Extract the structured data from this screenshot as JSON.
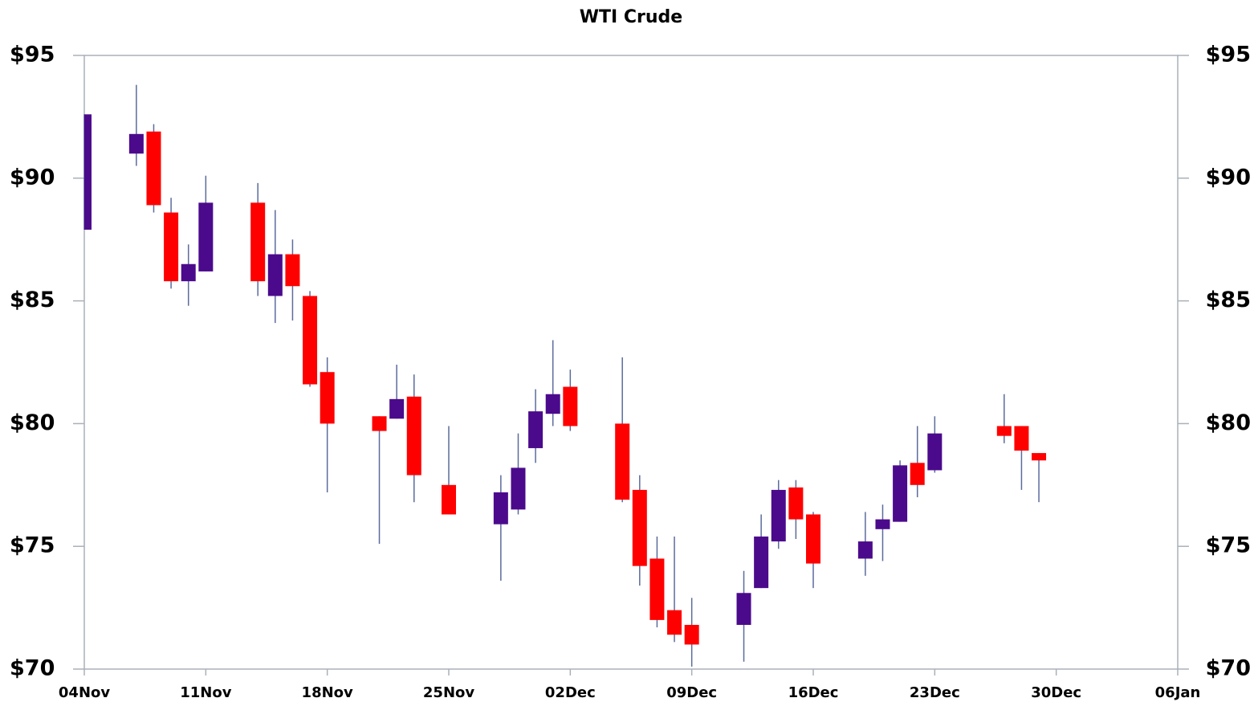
{
  "chart_data": {
    "type": "candlestick",
    "title": "WTI Crude",
    "x": [
      "04Nov",
      "07Nov",
      "08Nov",
      "09Nov",
      "10Nov",
      "11Nov",
      "14Nov",
      "15Nov",
      "16Nov",
      "17Nov",
      "18Nov",
      "21Nov",
      "22Nov",
      "23Nov",
      "25Nov",
      "28Nov",
      "29Nov",
      "30Nov",
      "01Dec",
      "02Dec",
      "05Dec",
      "06Dec",
      "07Dec",
      "08Dec",
      "09Dec",
      "12Dec",
      "13Dec",
      "14Dec",
      "15Dec",
      "16Dec",
      "19Dec",
      "20Dec",
      "21Dec",
      "22Dec",
      "23Dec",
      "27Dec",
      "28Dec",
      "29Dec"
    ],
    "open": [
      87.9,
      91.0,
      91.9,
      88.6,
      85.8,
      86.2,
      89.0,
      85.2,
      86.9,
      85.2,
      82.1,
      80.3,
      80.2,
      81.1,
      77.5,
      75.9,
      76.5,
      79.0,
      80.4,
      81.5,
      80.0,
      77.3,
      74.5,
      72.4,
      71.8,
      71.8,
      73.3,
      75.2,
      77.4,
      76.3,
      74.5,
      75.7,
      76.0,
      78.4,
      78.1,
      79.9,
      79.9,
      78.8
    ],
    "high": [
      92.6,
      93.8,
      92.2,
      89.2,
      87.3,
      90.1,
      89.8,
      88.7,
      87.5,
      85.4,
      82.7,
      80.3,
      82.4,
      82.0,
      79.9,
      77.9,
      79.6,
      81.4,
      83.4,
      82.2,
      82.7,
      77.9,
      75.4,
      75.4,
      72.9,
      74.0,
      76.3,
      77.7,
      77.7,
      76.4,
      76.4,
      76.7,
      78.5,
      79.9,
      80.3,
      81.2,
      79.9,
      78.8
    ],
    "low": [
      87.9,
      90.5,
      88.6,
      85.5,
      84.8,
      86.2,
      85.2,
      84.1,
      84.2,
      81.5,
      77.2,
      75.1,
      80.2,
      76.8,
      76.3,
      73.6,
      76.3,
      78.4,
      79.9,
      79.7,
      76.8,
      73.4,
      71.7,
      71.1,
      70.1,
      70.3,
      73.3,
      74.9,
      75.3,
      73.3,
      73.8,
      74.4,
      76.0,
      77.0,
      78.0,
      79.2,
      77.3,
      76.8
    ],
    "close": [
      92.6,
      91.8,
      88.9,
      85.8,
      86.5,
      89.0,
      85.8,
      86.9,
      85.6,
      81.6,
      80.0,
      79.7,
      81.0,
      77.9,
      76.3,
      77.2,
      78.2,
      80.5,
      81.2,
      79.9,
      76.9,
      74.2,
      72.0,
      71.4,
      71.0,
      73.1,
      75.4,
      77.3,
      76.1,
      74.3,
      75.2,
      76.1,
      78.3,
      77.5,
      79.6,
      79.5,
      78.9,
      78.5
    ],
    "up_color": "#4b0a8c",
    "down_color": "#ff0000",
    "wick_color": "#5b6b9c",
    "xlim": [
      "04Nov",
      "06Jan"
    ],
    "xticks": [
      "04Nov",
      "11Nov",
      "18Nov",
      "25Nov",
      "02Dec",
      "09Dec",
      "16Dec",
      "23Dec",
      "30Dec",
      "06Jan"
    ],
    "ylim": [
      70,
      95
    ],
    "yticks": [
      {
        "value": 70,
        "label": "$70"
      },
      {
        "value": 75,
        "label": "$75"
      },
      {
        "value": 80,
        "label": "$80"
      },
      {
        "value": 85,
        "label": "$85"
      },
      {
        "value": 90,
        "label": "$90"
      },
      {
        "value": 95,
        "label": "$95"
      }
    ],
    "y2lim": [
      70,
      95
    ],
    "y2ticks": [
      {
        "value": 70,
        "label": "$70"
      },
      {
        "value": 75,
        "label": "$75"
      },
      {
        "value": 80,
        "label": "$80"
      },
      {
        "value": 85,
        "label": "$85"
      },
      {
        "value": 90,
        "label": "$90"
      },
      {
        "value": 95,
        "label": "$95"
      }
    ]
  }
}
